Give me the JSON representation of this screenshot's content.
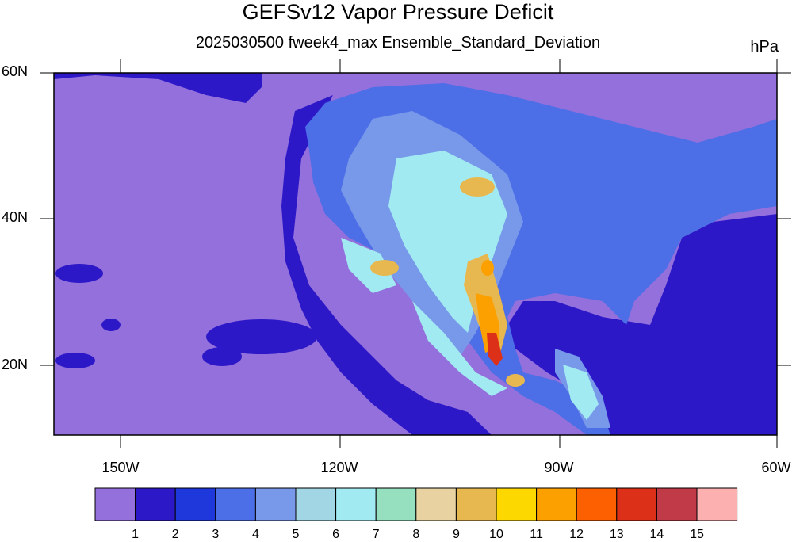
{
  "title": "GEFSv12 Vapor Pressure Deficit",
  "subtitle": "2025030500 fweek4_max Ensemble_Standard_Deviation",
  "units": "hPa",
  "lat_labels": [
    "60N",
    "40N",
    "20N"
  ],
  "lon_labels": [
    "150W",
    "120W",
    "90W",
    "60W"
  ],
  "colorbar": {
    "labels": [
      "1",
      "2",
      "3",
      "4",
      "5",
      "6",
      "7",
      "8",
      "9",
      "10",
      "11",
      "12",
      "13",
      "14",
      "15"
    ],
    "colors": [
      "#9470dc",
      "#2d18c8",
      "#1e38dc",
      "#4c6ee6",
      "#7898ea",
      "#a2d6e4",
      "#a2eaf2",
      "#96e0c0",
      "#e8d2a2",
      "#e8b850",
      "#fcd800",
      "#fca000",
      "#fc6000",
      "#dc3018",
      "#c03a48",
      "#fcb0b0"
    ]
  },
  "map": {
    "ocean_color": "#9470dc",
    "coast_color": "#2d18c8",
    "land_color": "#4c6ee6",
    "extent": {
      "lon": [
        -160,
        -60
      ],
      "lat": [
        10,
        60
      ]
    }
  }
}
